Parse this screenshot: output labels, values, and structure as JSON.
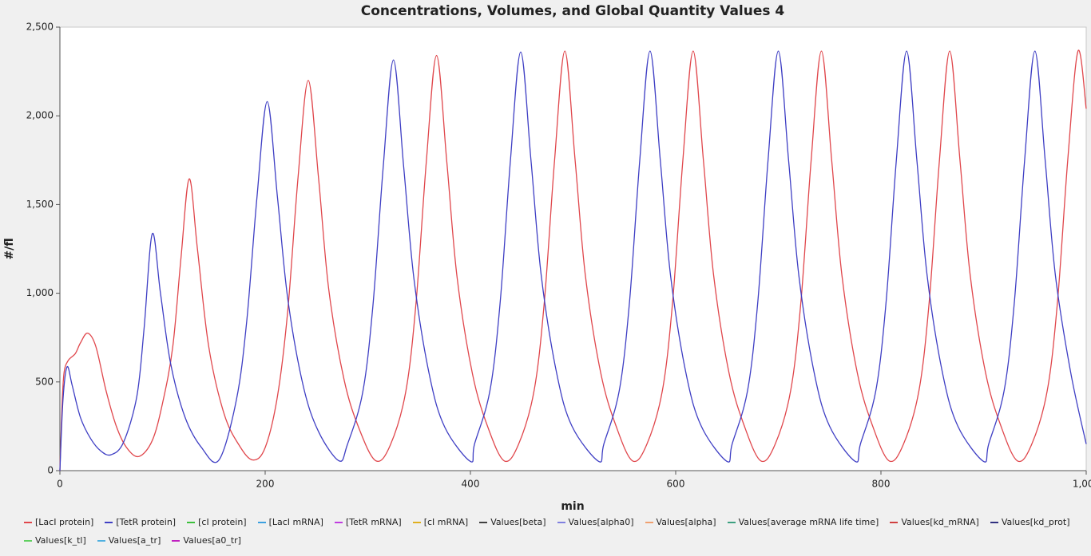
{
  "chart_data": {
    "type": "line",
    "title": "Concentrations, Volumes, and Global Quantity Values 4",
    "xlabel": "min",
    "ylabel": "#/fl",
    "xlim": [
      0,
      1000
    ],
    "ylim": [
      0,
      2500
    ],
    "xticks": [
      0,
      200,
      400,
      600,
      800,
      {
        "value": 1000,
        "label": "1,000"
      }
    ],
    "yticks": [
      0,
      500,
      {
        "value": 1000,
        "label": "1,000"
      },
      {
        "value": 1500,
        "label": "1,500"
      },
      {
        "value": 2000,
        "label": "2,000"
      },
      {
        "value": 2500,
        "label": "2,500"
      }
    ],
    "grid": false,
    "series": [
      {
        "name": "[LacI protein]",
        "color": "#e0474c",
        "x": [
          0,
          2,
          4,
          8,
          15,
          20,
          27,
          35,
          45,
          55,
          65,
          77,
          90,
          100,
          110,
          118,
          126,
          134,
          145,
          160,
          175,
          188,
          200,
          212,
          222,
          232,
          242,
          252,
          262,
          277,
          292,
          308,
          322,
          337,
          347,
          357,
          367,
          377,
          387,
          402,
          417,
          433,
          447,
          462,
          472,
          482,
          492,
          502,
          512,
          527,
          542,
          558,
          572,
          587,
          597,
          607,
          617,
          627,
          637,
          652,
          667,
          683,
          697,
          712,
          722,
          732,
          742,
          752,
          762,
          777,
          792,
          808,
          822,
          837,
          847,
          857,
          867,
          877,
          887,
          902,
          917,
          933,
          947,
          962,
          972,
          982,
          992,
          1000
        ],
        "values": [
          0,
          350,
          550,
          620,
          660,
          720,
          775,
          700,
          450,
          250,
          130,
          80,
          170,
          380,
          700,
          1200,
          1645,
          1250,
          700,
          320,
          140,
          60,
          130,
          420,
          900,
          1650,
          2200,
          1650,
          1020,
          510,
          230,
          55,
          145,
          445,
          945,
          1740,
          2340,
          1740,
          1090,
          545,
          245,
          55,
          150,
          450,
          950,
          1750,
          2365,
          1750,
          1100,
          550,
          250,
          55,
          150,
          450,
          950,
          1750,
          2365,
          1750,
          1100,
          550,
          250,
          55,
          150,
          450,
          950,
          1750,
          2365,
          1750,
          1100,
          550,
          250,
          55,
          150,
          450,
          950,
          1750,
          2365,
          1750,
          1100,
          550,
          250,
          55,
          150,
          450,
          950,
          1750,
          2365,
          2040
        ]
      },
      {
        "name": "[TetR protein]",
        "color": "#3f3fc4",
        "x": [
          0,
          3,
          7,
          12,
          20,
          30,
          40,
          50,
          62,
          75,
          82,
          90,
          98,
          108,
          122,
          138,
          155,
          172,
          182,
          192,
          202,
          212,
          222,
          237,
          252,
          272,
          280,
          295,
          305,
          315,
          325,
          335,
          345,
          360,
          375,
          400,
          404,
          419,
          429,
          439,
          449,
          459,
          469,
          484,
          499,
          525,
          530,
          545,
          555,
          565,
          575,
          585,
          595,
          610,
          625,
          650,
          655,
          670,
          680,
          690,
          700,
          710,
          720,
          735,
          750,
          775,
          780,
          795,
          805,
          815,
          825,
          835,
          845,
          860,
          875,
          900,
          905,
          920,
          930,
          940,
          950,
          960,
          970,
          985,
          1000
        ],
        "values": [
          0,
          400,
          585,
          480,
          300,
          180,
          110,
          90,
          160,
          420,
          800,
          1335,
          1000,
          600,
          300,
          130,
          60,
          400,
          840,
          1540,
          2080,
          1540,
          970,
          480,
          220,
          55,
          145,
          440,
          930,
          1710,
          2315,
          1710,
          1080,
          540,
          245,
          52,
          150,
          450,
          950,
          1750,
          2360,
          1750,
          1100,
          550,
          250,
          52,
          150,
          450,
          950,
          1750,
          2365,
          1750,
          1100,
          550,
          250,
          52,
          150,
          450,
          950,
          1750,
          2365,
          1750,
          1100,
          550,
          250,
          52,
          150,
          450,
          950,
          1750,
          2365,
          1750,
          1100,
          550,
          250,
          52,
          150,
          450,
          950,
          1750,
          2365,
          1750,
          1100,
          550,
          150
        ]
      },
      {
        "name": "[cI protein]",
        "color": "#3cc03c"
      },
      {
        "name": "[LacI mRNA]",
        "color": "#3ca0e0"
      },
      {
        "name": "[TetR mRNA]",
        "color": "#c03ce0"
      },
      {
        "name": "[cI mRNA]",
        "color": "#e0b020"
      },
      {
        "name": "Values[beta]",
        "color": "#404040"
      },
      {
        "name": "Values[alpha0]",
        "color": "#8080e0"
      },
      {
        "name": "Values[alpha]",
        "color": "#f0a070"
      },
      {
        "name": "Values[average mRNA life time]",
        "color": "#3ca080"
      },
      {
        "name": "Values[kd_mRNA]",
        "color": "#d04040"
      },
      {
        "name": "Values[kd_prot]",
        "color": "#303080"
      },
      {
        "name": "Values[k_tl]",
        "color": "#60d060"
      },
      {
        "name": "Values[a_tr]",
        "color": "#50b0e0"
      },
      {
        "name": "Values[a0_tr]",
        "color": "#c020c0"
      }
    ]
  }
}
